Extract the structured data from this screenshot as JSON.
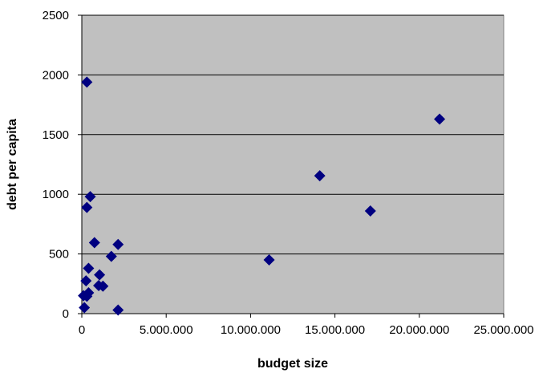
{
  "chart_data": {
    "type": "scatter",
    "title": "",
    "xlabel": "budget size",
    "ylabel": "debt per capita",
    "xlim": [
      0,
      25000000
    ],
    "ylim": [
      0,
      2500
    ],
    "x_ticks": [
      0,
      5000000,
      10000000,
      15000000,
      20000000,
      25000000
    ],
    "x_tick_labels": [
      "0",
      "5.000.000",
      "10.000.000",
      "15.000.000",
      "20.000.000",
      "25.000.000"
    ],
    "y_ticks": [
      0,
      500,
      1000,
      1500,
      2000,
      2500
    ],
    "y_tick_labels": [
      "0",
      "500",
      "1000",
      "1500",
      "2000",
      "2500"
    ],
    "grid": "horizontal",
    "legend": "none",
    "colors": {
      "plot_area": "#c0c0c0",
      "marker": "#000080",
      "gridline": "#000000"
    },
    "marker": "diamond",
    "series": [
      {
        "points": [
          {
            "x": 300000,
            "y": 1940
          },
          {
            "x": 500000,
            "y": 980
          },
          {
            "x": 300000,
            "y": 890
          },
          {
            "x": 750000,
            "y": 595
          },
          {
            "x": 2150000,
            "y": 580
          },
          {
            "x": 1750000,
            "y": 480
          },
          {
            "x": 400000,
            "y": 380
          },
          {
            "x": 1050000,
            "y": 325
          },
          {
            "x": 250000,
            "y": 275
          },
          {
            "x": 1000000,
            "y": 235
          },
          {
            "x": 1250000,
            "y": 230
          },
          {
            "x": 400000,
            "y": 175
          },
          {
            "x": 100000,
            "y": 150
          },
          {
            "x": 300000,
            "y": 145
          },
          {
            "x": 150000,
            "y": 50
          },
          {
            "x": 2150000,
            "y": 30
          },
          {
            "x": 11100000,
            "y": 450
          },
          {
            "x": 14100000,
            "y": 1155
          },
          {
            "x": 17100000,
            "y": 860
          },
          {
            "x": 21200000,
            "y": 1630
          }
        ]
      }
    ]
  }
}
